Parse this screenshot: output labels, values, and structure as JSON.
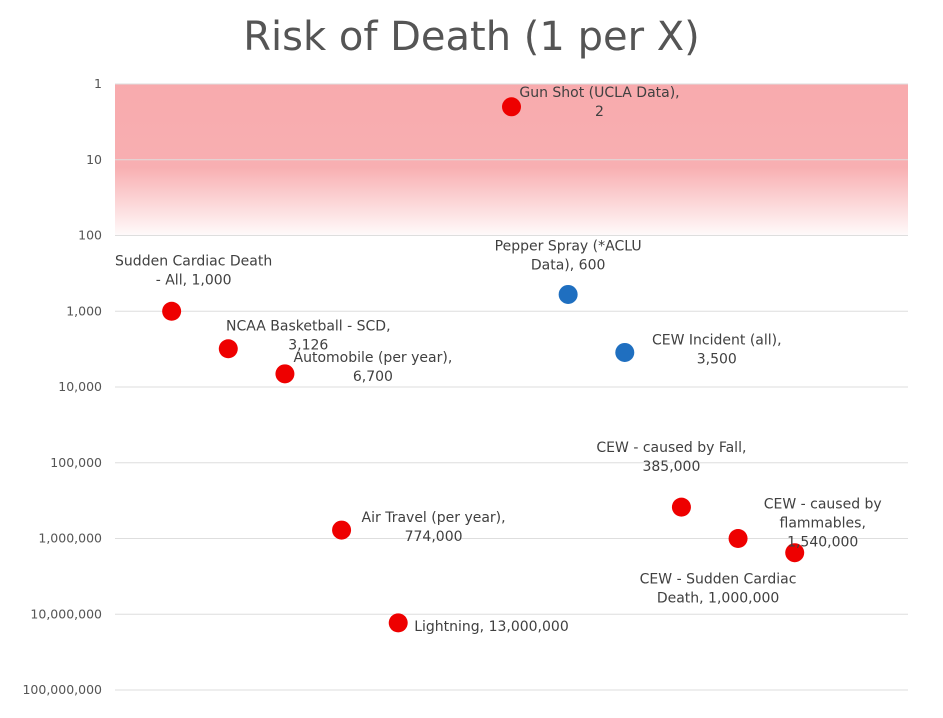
{
  "chart_data": {
    "type": "scatter",
    "title": "Risk of Death (1 per X)",
    "xlabel": "",
    "ylabel": "",
    "y_scale": "log",
    "y_reversed": true,
    "ylim": [
      1,
      100000000
    ],
    "xlim": [
      0,
      14
    ],
    "yticks": [
      "1",
      "10",
      "100",
      "1,000",
      "10,000",
      "100,000",
      "1,000,000",
      "10,000,000",
      "100,000,000"
    ],
    "grid": true,
    "shaded_band": {
      "from": 1,
      "to": 100,
      "color": "#f7a1a4"
    },
    "colors": {
      "red": "#ee0000",
      "blue": "#1f6fc0"
    },
    "points": [
      {
        "x": 1,
        "y": 1000,
        "label": [
          "Sudden Cardiac Death",
          "- All, 1,000"
        ],
        "color": "red"
      },
      {
        "x": 2,
        "y": 3126,
        "label": [
          "NCAA Basketball - SCD,",
          "3,126"
        ],
        "color": "red"
      },
      {
        "x": 3,
        "y": 6700,
        "label": [
          "Automobile (per year),",
          "6,700"
        ],
        "color": "red"
      },
      {
        "x": 4,
        "y": 774000,
        "label": [
          "Air Travel (per year),",
          "774,000"
        ],
        "color": "red"
      },
      {
        "x": 5,
        "y": 13000000,
        "label": [
          "Lightning,  13,000,000"
        ],
        "color": "red"
      },
      {
        "x": 7,
        "y": 2,
        "label": [
          "Gun Shot (UCLA Data),",
          "2"
        ],
        "color": "red"
      },
      {
        "x": 8,
        "y": 600,
        "label": [
          "Pepper Spray (*ACLU",
          "Data),  600"
        ],
        "color": "blue"
      },
      {
        "x": 9,
        "y": 3500,
        "label": [
          "CEW Incident (all),",
          "3,500"
        ],
        "color": "blue"
      },
      {
        "x": 10,
        "y": 385000,
        "label": [
          "CEW - caused by Fall,",
          "385,000"
        ],
        "color": "red"
      },
      {
        "x": 11,
        "y": 1000000,
        "label": [
          "CEW - Sudden Cardiac",
          "Death,  1,000,000"
        ],
        "color": "red"
      },
      {
        "x": 12,
        "y": 1540000,
        "label": [
          "CEW - caused by",
          "flammables,",
          "1,540,000"
        ],
        "color": "red"
      }
    ]
  }
}
